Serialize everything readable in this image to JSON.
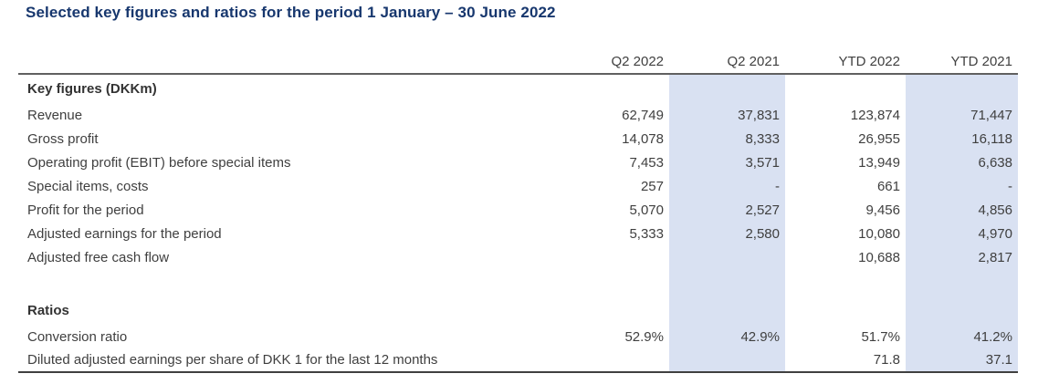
{
  "title": "Selected key figures and ratios for the period 1 January – 30 June 2022",
  "colors": {
    "highlight": "#d9e1f2",
    "title_text": "#17376e",
    "body_text": "#3f3f3f",
    "rule_top": "#606060",
    "rule_bottom": "#404040"
  },
  "table": {
    "columns": [
      "",
      "Q2 2022",
      "Q2 2021",
      "YTD 2022",
      "YTD 2021"
    ],
    "highlighted_columns": [
      "Q2 2022",
      "YTD 2022"
    ],
    "sections": [
      {
        "header": "Key figures (DKKm)",
        "rows": [
          {
            "label": "Revenue",
            "values": [
              "62,749",
              "37,831",
              "123,874",
              "71,447"
            ]
          },
          {
            "label": "Gross profit",
            "values": [
              "14,078",
              "8,333",
              "26,955",
              "16,118"
            ]
          },
          {
            "label": "Operating profit (EBIT) before special items",
            "values": [
              "7,453",
              "3,571",
              "13,949",
              "6,638"
            ]
          },
          {
            "label": "Special items, costs",
            "values": [
              "257",
              "-",
              "661",
              "-"
            ]
          },
          {
            "label": "Profit for the period",
            "values": [
              "5,070",
              "2,527",
              "9,456",
              "4,856"
            ]
          },
          {
            "label": "Adjusted earnings for the period",
            "values": [
              "5,333",
              "2,580",
              "10,080",
              "4,970"
            ]
          },
          {
            "label": "Adjusted free cash flow",
            "values": [
              "",
              "",
              "10,688",
              "2,817"
            ]
          }
        ]
      },
      {
        "header": "Ratios",
        "rows": [
          {
            "label": "Conversion ratio",
            "values": [
              "52.9%",
              "42.9%",
              "51.7%",
              "41.2%"
            ]
          },
          {
            "label": "Diluted adjusted earnings per share of DKK 1 for the last 12 months",
            "values": [
              "",
              "",
              "71.8",
              "37.1"
            ]
          }
        ]
      }
    ]
  }
}
